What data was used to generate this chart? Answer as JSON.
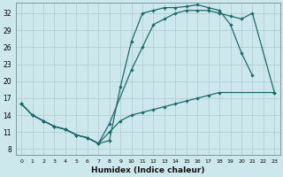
{
  "xlabel": "Humidex (Indice chaleur)",
  "bg_color": "#cde8ec",
  "grid_color": "#b0ced4",
  "line_color": "#1a6b6b",
  "xlim": [
    -0.5,
    23.5
  ],
  "ylim": [
    7.0,
    33.8
  ],
  "xticks": [
    0,
    1,
    2,
    3,
    4,
    5,
    6,
    7,
    8,
    9,
    10,
    11,
    12,
    13,
    14,
    15,
    16,
    17,
    18,
    19,
    20,
    21,
    22,
    23
  ],
  "yticks": [
    8,
    11,
    14,
    17,
    20,
    23,
    26,
    29,
    32
  ],
  "line1_x": [
    0,
    1,
    2,
    3,
    4,
    5,
    6,
    7,
    8,
    9,
    10,
    11,
    12,
    13,
    14,
    15,
    16,
    17,
    18,
    19,
    20,
    21
  ],
  "line1_y": [
    16,
    14,
    13,
    12,
    11.5,
    10.5,
    10,
    9,
    9.5,
    19,
    27,
    32,
    32.5,
    33,
    33,
    33.2,
    33.5,
    33,
    32.5,
    30,
    25,
    21
  ],
  "line2_x": [
    0,
    1,
    2,
    3,
    4,
    5,
    6,
    7,
    8,
    10,
    11,
    12,
    13,
    14,
    15,
    16,
    17,
    18,
    19,
    20,
    21,
    23
  ],
  "line2_y": [
    16,
    14,
    13,
    12,
    11.5,
    10.5,
    10,
    9,
    12.5,
    22,
    26,
    30,
    31,
    32,
    32.5,
    32.5,
    32.5,
    32,
    31.5,
    31,
    32,
    18
  ],
  "line3_x": [
    0,
    1,
    2,
    3,
    4,
    5,
    6,
    7,
    8,
    9,
    10,
    11,
    12,
    13,
    14,
    15,
    16,
    17,
    18,
    23
  ],
  "line3_y": [
    16,
    14,
    13,
    12,
    11.5,
    10.5,
    10,
    9,
    11,
    13,
    14,
    14.5,
    15,
    15.5,
    16,
    16.5,
    17,
    17.5,
    18,
    18
  ]
}
